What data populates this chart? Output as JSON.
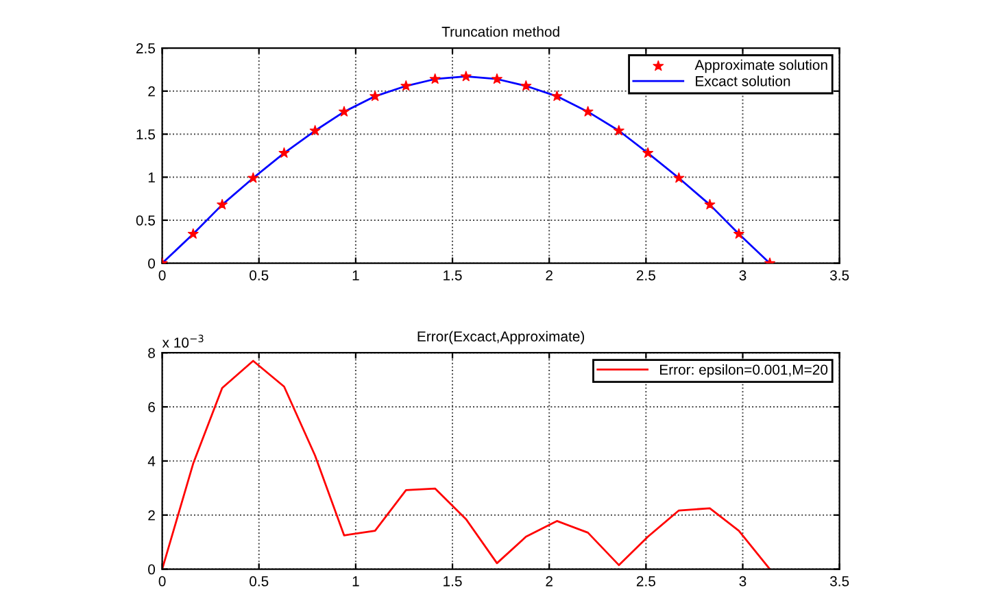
{
  "chart_data": [
    {
      "type": "line",
      "title": "Truncation method",
      "x": [
        0,
        0.16,
        0.31,
        0.47,
        0.63,
        0.79,
        0.94,
        1.1,
        1.26,
        1.41,
        1.57,
        1.73,
        1.88,
        2.04,
        2.2,
        2.36,
        2.51,
        2.67,
        2.83,
        2.98,
        3.14
      ],
      "series": [
        {
          "name": "Approximate solution",
          "type": "scatter",
          "marker": "star",
          "color": "#ff0000",
          "values": [
            0,
            0.34,
            0.68,
            0.99,
            1.28,
            1.54,
            1.76,
            1.94,
            2.06,
            2.14,
            2.17,
            2.14,
            2.06,
            1.94,
            1.76,
            1.54,
            1.28,
            0.99,
            0.68,
            0.34,
            0
          ]
        },
        {
          "name": "Excact solution",
          "type": "line",
          "color": "#0000ff",
          "values": [
            0,
            0.34,
            0.68,
            0.99,
            1.28,
            1.54,
            1.76,
            1.94,
            2.06,
            2.14,
            2.17,
            2.14,
            2.06,
            1.94,
            1.76,
            1.54,
            1.28,
            0.99,
            0.68,
            0.34,
            0
          ]
        }
      ],
      "xlim": [
        0,
        3.5
      ],
      "xticks": [
        0,
        0.5,
        1,
        1.5,
        2,
        2.5,
        3,
        3.5
      ],
      "ylim": [
        0,
        2.5
      ],
      "yticks": [
        0,
        0.5,
        1,
        1.5,
        2,
        2.5
      ],
      "grid": true,
      "legend": "top right"
    },
    {
      "type": "line",
      "title": "Error(Excact,Approximate)",
      "x": [
        0,
        0.16,
        0.31,
        0.47,
        0.63,
        0.79,
        0.94,
        1.1,
        1.26,
        1.41,
        1.57,
        1.73,
        1.88,
        2.04,
        2.2,
        2.36,
        2.51,
        2.67,
        2.83,
        2.98,
        3.14
      ],
      "series": [
        {
          "name": "Error: epsilon=0.001,M=20",
          "color": "#ff0000",
          "values": [
            0,
            3.9,
            6.7,
            7.7,
            6.75,
            4.2,
            1.25,
            1.42,
            2.92,
            2.98,
            1.85,
            0.22,
            1.2,
            1.78,
            1.35,
            0.15,
            1.2,
            2.17,
            2.25,
            1.42,
            0
          ]
        }
      ],
      "xlim": [
        0,
        3.5
      ],
      "xticks": [
        0,
        0.5,
        1,
        1.5,
        2,
        2.5,
        3,
        3.5
      ],
      "ylim": [
        0,
        8
      ],
      "yticks": [
        0,
        2,
        4,
        6,
        8
      ],
      "annotations": [
        "x 10$^{−3}$"
      ],
      "grid": true,
      "legend": "top right"
    }
  ]
}
